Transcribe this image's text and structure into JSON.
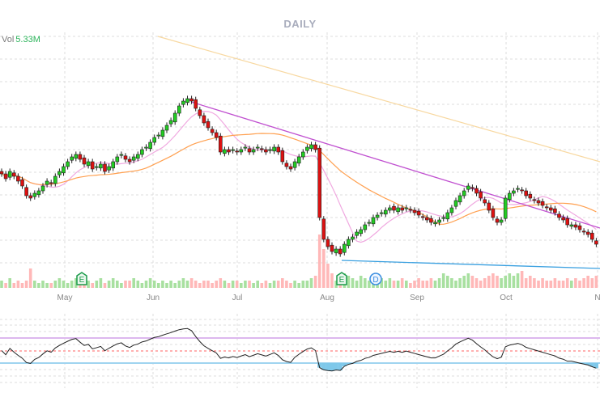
{
  "header": {
    "title": "DAILY"
  },
  "volume_readout": {
    "label": "Vol",
    "value": "5.33M"
  },
  "markers": [
    {
      "type": "earnings",
      "label": "E",
      "month_index": 0
    },
    {
      "type": "earnings",
      "label": "E",
      "month_index": 3
    },
    {
      "type": "dividend",
      "label": "D",
      "month_index": 3
    }
  ],
  "colors": {
    "up": "#22cc22",
    "down": "#dd1111",
    "vol_up": "#a8e0a0",
    "vol_down": "#ffb8b8",
    "sma_short": "#f0a8e0",
    "sma_mid": "#ffa050",
    "sma_long": "#f8d8a0",
    "trend_down": "#c050d0",
    "trend_support": "#3aa0e0",
    "osc_line": "#222222",
    "osc_upper": "#dcb8ee",
    "osc_mid": "#ff6060",
    "osc_lower": "#9fd4f0",
    "title": "#a9adbd"
  },
  "chart_data": {
    "type": "candlestick",
    "interval": "daily",
    "x_ticks": [
      "May",
      "Jun",
      "Jul",
      "Aug",
      "Sep",
      "Oct",
      "N"
    ],
    "close": [
      45,
      43,
      46,
      44,
      42,
      40,
      36,
      35,
      37,
      38,
      40,
      42,
      41,
      44,
      46,
      48,
      50,
      52,
      53,
      51,
      49,
      50,
      47,
      48,
      49,
      46,
      48,
      50,
      52,
      53,
      51,
      50,
      52,
      53,
      55,
      56,
      58,
      60,
      61,
      63,
      65,
      67,
      70,
      73,
      75,
      76,
      75,
      72,
      69,
      66,
      64,
      62,
      60,
      54,
      55,
      54,
      55,
      54,
      55,
      56,
      54,
      55,
      56,
      55,
      54,
      55,
      56,
      54,
      50,
      48,
      47,
      50,
      52,
      54,
      56,
      57,
      55,
      27,
      18,
      15,
      13,
      14,
      12,
      16,
      18,
      19,
      21,
      22,
      24,
      25,
      27,
      28,
      29,
      30,
      31,
      30,
      31,
      30,
      31,
      30,
      29,
      28,
      27,
      26,
      25,
      25,
      26,
      27,
      29,
      31,
      34,
      36,
      38,
      40,
      39,
      37,
      35,
      33,
      30,
      27,
      25,
      26,
      35,
      37,
      38,
      39,
      38,
      36,
      35,
      34,
      33,
      32,
      31,
      30,
      29,
      27,
      26,
      24,
      24,
      23,
      22,
      21,
      20,
      18,
      16
    ],
    "volume_relative": [
      3,
      2,
      4,
      2,
      3,
      2,
      3,
      8,
      3,
      2,
      3,
      2,
      2,
      3,
      4,
      3,
      2,
      3,
      4,
      3,
      5,
      3,
      2,
      3,
      4,
      2,
      3,
      4,
      3,
      2,
      3,
      3,
      4,
      3,
      2,
      3,
      4,
      3,
      2,
      3,
      2,
      3,
      2,
      3,
      4,
      3,
      4,
      3,
      2,
      3,
      3,
      2,
      3,
      4,
      3,
      2,
      3,
      3,
      2,
      3,
      3,
      2,
      3,
      2,
      3,
      2,
      3,
      3,
      4,
      3,
      2,
      3,
      2,
      3,
      3,
      4,
      5,
      22,
      16,
      10,
      6,
      3,
      4,
      6,
      5,
      4,
      3,
      5,
      4,
      3,
      4,
      6,
      4,
      3,
      4,
      3,
      3,
      4,
      3,
      2,
      3,
      4,
      3,
      3,
      4,
      3,
      4,
      6,
      5,
      4,
      3,
      4,
      5,
      6,
      5,
      4,
      3,
      4,
      5,
      6,
      5,
      4,
      5,
      6,
      5,
      6,
      7,
      4,
      5,
      4,
      3,
      4,
      3,
      3,
      4,
      3,
      3,
      4,
      3,
      4,
      3,
      4,
      5,
      4,
      5
    ],
    "indicators": {
      "oscillator_levels": [
        70,
        50,
        30
      ]
    },
    "grid": true
  }
}
